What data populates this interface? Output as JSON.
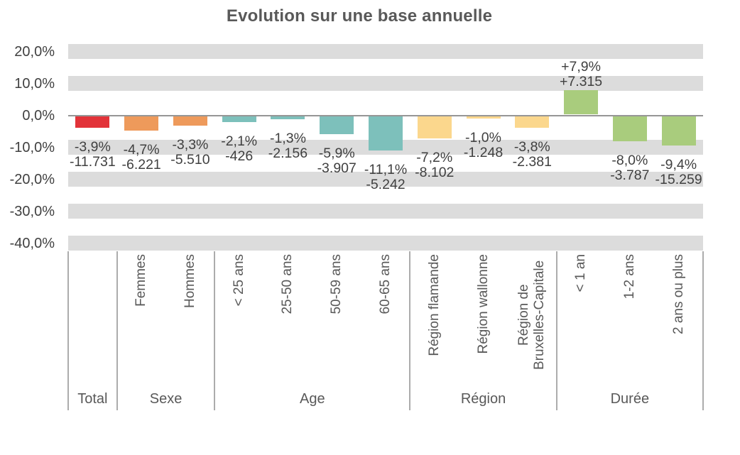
{
  "colors": {
    "total": "#E23339",
    "sexe": "#EE9A5B",
    "age": "#7DC0BB",
    "region": "#FBD78D",
    "duree": "#A9CC7D",
    "gridline_band": "#DCDCDC",
    "zero_line": "#969696",
    "separator": "#ACACAC",
    "title_text": "#595959",
    "value_text": "#404040",
    "category_text": "#595959"
  },
  "chart_data": {
    "type": "bar",
    "title": "Evolution sur une base annuelle",
    "xlabel": "",
    "ylabel": "",
    "legend": "none",
    "gridlines": "horizontal-gray-bands",
    "y_axis": {
      "min": -40,
      "max": 20,
      "step": 10,
      "tick_values": [
        20,
        10,
        0,
        -10,
        -20,
        -30,
        -40
      ],
      "tick_labels": [
        "20,0%",
        "10,0%",
        "0,0%",
        "-10,0%",
        "-20,0%",
        "-30,0%",
        "-40,0%"
      ]
    },
    "groups": [
      {
        "label": "Total",
        "color_key": "total",
        "bars": [
          {
            "category": "",
            "value_pct": -3.9,
            "pct_label": "-3,9%",
            "abs_label": "-11.731"
          }
        ]
      },
      {
        "label": "Sexe",
        "color_key": "sexe",
        "bars": [
          {
            "category": "Femmes",
            "value_pct": -4.7,
            "pct_label": "-4,7%",
            "abs_label": "-6.221"
          },
          {
            "category": "Hommes",
            "value_pct": -3.3,
            "pct_label": "-3,3%",
            "abs_label": "-5.510"
          }
        ]
      },
      {
        "label": "Age",
        "color_key": "age",
        "bars": [
          {
            "category": "< 25 ans",
            "value_pct": -2.1,
            "pct_label": "-2,1%",
            "abs_label": "-426"
          },
          {
            "category": "25-50 ans",
            "value_pct": -1.3,
            "pct_label": "-1,3%",
            "abs_label": "-2.156"
          },
          {
            "category": "50-59 ans",
            "value_pct": -5.9,
            "pct_label": "-5,9%",
            "abs_label": "-3.907"
          },
          {
            "category": "60-65 ans",
            "value_pct": -11.1,
            "pct_label": "-11,1%",
            "abs_label": "-5.242"
          }
        ]
      },
      {
        "label": "Région",
        "color_key": "region",
        "bars": [
          {
            "category": "Région flamande",
            "value_pct": -7.2,
            "pct_label": "-7,2%",
            "abs_label": "-8.102"
          },
          {
            "category": "Région wallonne",
            "value_pct": -1.0,
            "pct_label": "-1,0%",
            "abs_label": "-1.248"
          },
          {
            "category": "Région de Bruxelles-Capitale",
            "value_pct": -3.8,
            "pct_label": "-3,8%",
            "abs_label": "-2.381"
          }
        ]
      },
      {
        "label": "Durée",
        "color_key": "duree",
        "bars": [
          {
            "category": "< 1 an",
            "value_pct": 7.9,
            "pct_label": "+7,9%",
            "abs_label": "+7.315"
          },
          {
            "category": "1-2 ans",
            "value_pct": -8.0,
            "pct_label": "-8,0%",
            "abs_label": "-3.787"
          },
          {
            "category": "2 ans ou plus",
            "value_pct": -9.4,
            "pct_label": "-9,4%",
            "abs_label": "-15.259"
          }
        ]
      }
    ]
  }
}
